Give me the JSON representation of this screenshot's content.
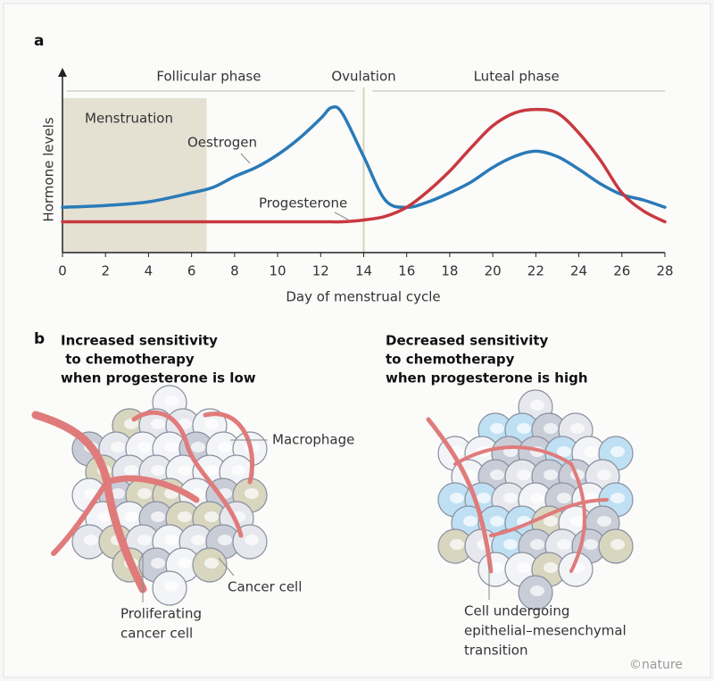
{
  "chart_data": {
    "type": "line",
    "panel_label": "a",
    "xlabel": "Day of menstrual cycle",
    "ylabel": "Hormone levels",
    "xlim": [
      0,
      28
    ],
    "ylim": [
      0,
      100
    ],
    "xticks": [
      0,
      2,
      4,
      6,
      8,
      10,
      12,
      14,
      16,
      18,
      20,
      22,
      24,
      26,
      28
    ],
    "x": [
      0,
      2,
      4,
      6,
      7,
      8,
      9,
      10,
      11,
      12,
      12.5,
      13,
      14,
      15,
      16,
      17,
      18,
      19,
      20,
      21,
      22,
      23,
      24,
      25,
      26,
      27,
      28
    ],
    "series": [
      {
        "name": "Oestrogen",
        "color": "#2a7ab8",
        "values": [
          25,
          26,
          28,
          33,
          36,
          42,
          47,
          54,
          63,
          74,
          80,
          77,
          53,
          29,
          25,
          28,
          33,
          39,
          47,
          53,
          56,
          53,
          46,
          38,
          32,
          29,
          25
        ]
      },
      {
        "name": "Progesterone",
        "color": "#c8393f",
        "values": [
          17,
          17,
          17,
          17,
          17,
          17,
          17,
          17,
          17,
          17,
          17,
          17,
          18,
          20,
          25,
          34,
          45,
          58,
          70,
          77,
          79,
          77,
          66,
          51,
          33,
          23,
          17
        ]
      }
    ],
    "phases": [
      {
        "name": "Follicular phase",
        "range": [
          0,
          13.6
        ]
      },
      {
        "name": "Luteal phase",
        "range": [
          14.2,
          28
        ]
      }
    ],
    "ovulation": {
      "name": "Ovulation",
      "day": 14
    },
    "shaded_regions": [
      {
        "name": "Menstruation",
        "range": [
          0,
          6.7
        ],
        "color": "#e4e1d3"
      }
    ]
  },
  "panel_b": {
    "panel_label": "b",
    "left_title": [
      "Increased sensitivity",
      " to chemotherapy",
      "when progesterone is low"
    ],
    "right_title": [
      "Decreased sensitivity",
      "to chemotherapy",
      "when progesterone is high"
    ],
    "labels": {
      "macrophage": "Macrophage",
      "cancer_cell": "Cancer cell",
      "proliferating": [
        "Proliferating",
        "cancer cell"
      ],
      "emt": [
        "Cell undergoing",
        "epithelial–mesenchymal",
        "transition"
      ]
    },
    "credit": "©nature"
  }
}
